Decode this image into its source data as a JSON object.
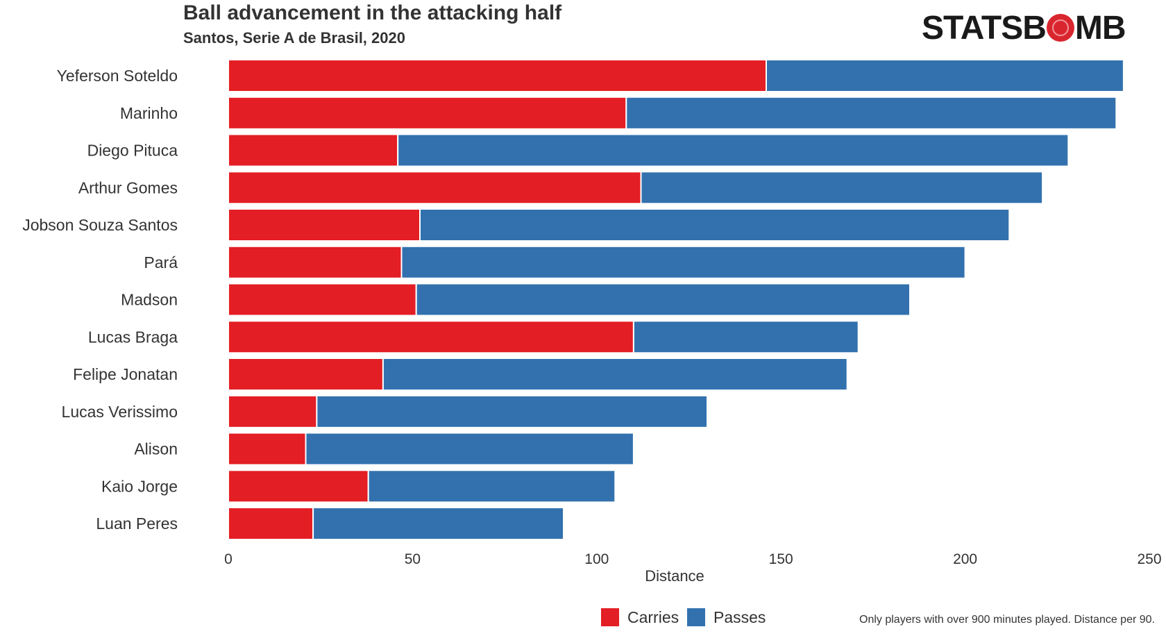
{
  "chart_data": {
    "type": "bar",
    "orientation": "horizontal",
    "stacked": true,
    "title": "Ball advancement in the attacking half",
    "subtitle": "Santos, Serie A de Brasil, 2020",
    "xlabel": "Distance",
    "ylabel": "",
    "xlim": [
      0,
      250
    ],
    "xticks": [
      "0",
      "50",
      "100",
      "150",
      "200",
      "250"
    ],
    "grid": false,
    "legend_position": "bottom",
    "categories": [
      "Yeferson Soteldo",
      "Marinho",
      "Diego Pituca",
      "Arthur Gomes",
      "Jobson Souza Santos",
      "Pará",
      "Madson",
      "Lucas Braga",
      "Felipe Jonatan",
      "Lucas Verissimo",
      "Alison",
      "Kaio Jorge",
      "Luan Peres"
    ],
    "series": [
      {
        "name": "Carries",
        "color": "#e31e24",
        "values": [
          146,
          108,
          46,
          112,
          52,
          47,
          51,
          110,
          42,
          24,
          21,
          38,
          23
        ]
      },
      {
        "name": "Passes",
        "color": "#3271ae",
        "values": [
          97,
          133,
          182,
          109,
          160,
          153,
          134,
          61,
          126,
          106,
          89,
          67,
          68
        ]
      }
    ],
    "footnote": "Only players with over 900 minutes played. Distance per 90.",
    "logo_text": [
      "STATSB",
      "MB"
    ]
  }
}
